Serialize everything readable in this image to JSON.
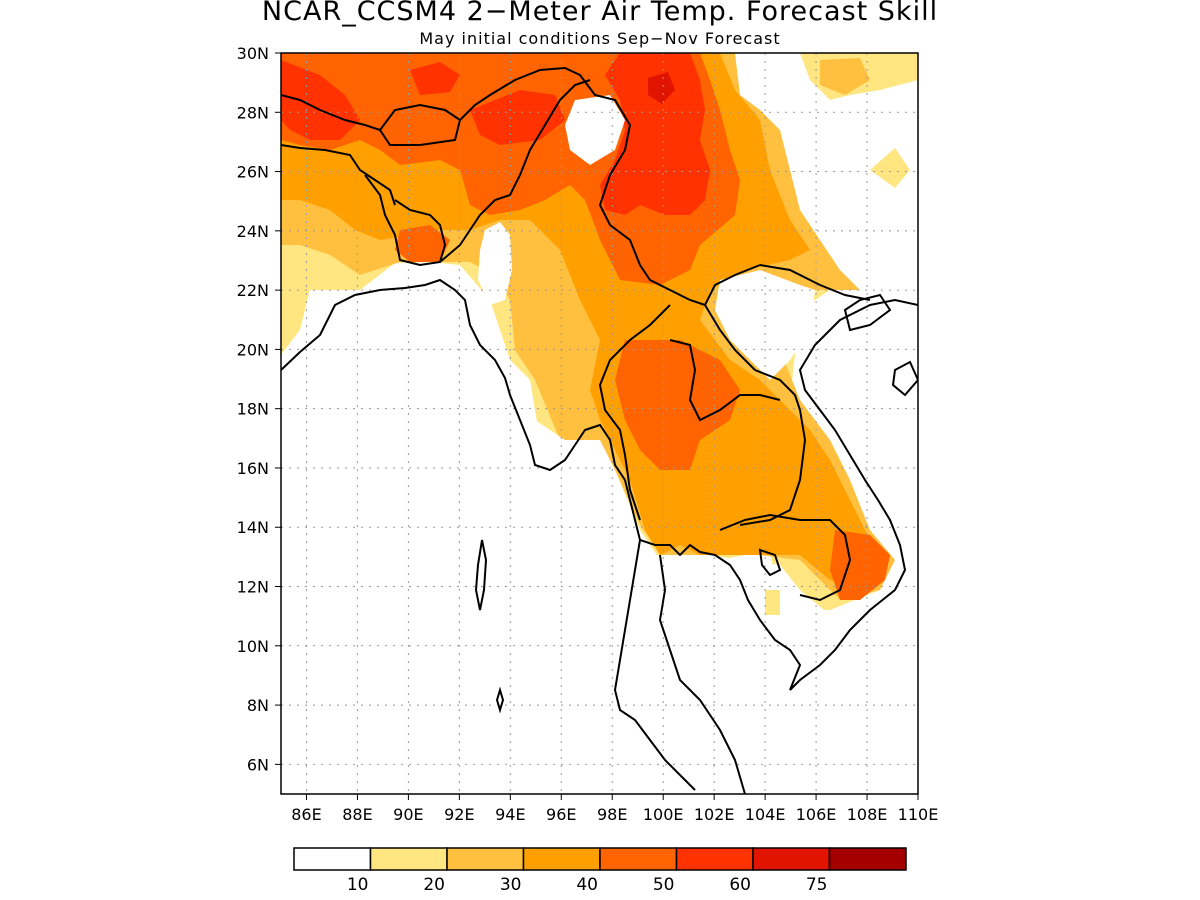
{
  "title": "NCAR_CCSM4 2−Meter Air Temp. Forecast Skill",
  "subtitle": "May initial conditions  Sep−Nov Forecast",
  "map": {
    "lon_range": [
      85,
      110
    ],
    "lat_range": [
      5,
      30
    ],
    "grid": true,
    "lat_labels": [
      "6N",
      "8N",
      "10N",
      "12N",
      "14N",
      "16N",
      "18N",
      "20N",
      "22N",
      "24N",
      "26N",
      "28N",
      "30N"
    ],
    "lon_labels": [
      "86E",
      "88E",
      "90E",
      "92E",
      "94E",
      "96E",
      "98E",
      "100E",
      "102E",
      "104E",
      "106E",
      "108E",
      "110E"
    ]
  },
  "colorbar": {
    "labels": [
      "10",
      "20",
      "30",
      "40",
      "50",
      "60",
      "75"
    ],
    "colors": [
      "#ffffff",
      "#ffe680",
      "#ffc040",
      "#ffa000",
      "#ff6400",
      "#ff3200",
      "#e11400",
      "#a50000"
    ]
  },
  "skill_levels": {
    "c1": "#ffe680",
    "c2": "#ffc040",
    "c3": "#ffa000",
    "c4": "#ff6400",
    "c5": "#ff3200",
    "c6": "#e11400"
  }
}
